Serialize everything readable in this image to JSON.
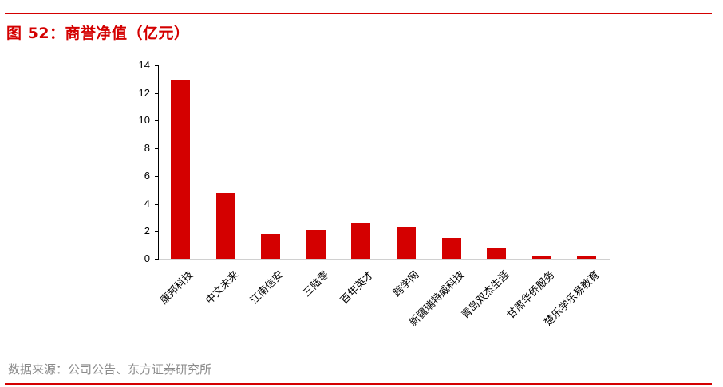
{
  "header": {
    "title": "图 52：商誉净值（亿元）"
  },
  "footer": {
    "source": "数据来源：公司公告、东方证券研究所"
  },
  "colors": {
    "accent": "#d40000",
    "bar": "#d40000",
    "source_text": "#8a8a8a"
  },
  "chart_data": {
    "type": "bar",
    "title": "商誉净值（亿元）",
    "xlabel": "",
    "ylabel": "",
    "ylim": [
      0,
      14
    ],
    "yticks": [
      0,
      2,
      4,
      6,
      8,
      10,
      12,
      14
    ],
    "grid": false,
    "legend": null,
    "categories": [
      "康邦科技",
      "中文未来",
      "江南信安",
      "三陆零",
      "百年英才",
      "跨学网",
      "新疆瑞特威科技",
      "青岛双杰生涯",
      "甘肃华侨服务",
      "楚乐学乐易教育"
    ],
    "values": [
      12.9,
      4.8,
      1.8,
      2.1,
      2.6,
      2.3,
      1.5,
      0.75,
      0.15,
      0.2
    ]
  }
}
